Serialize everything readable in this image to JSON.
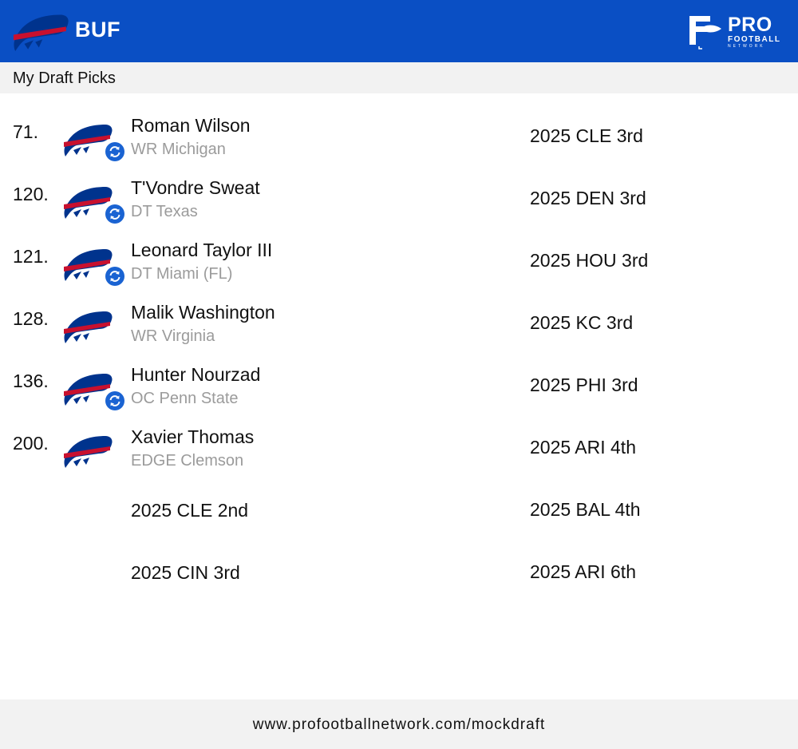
{
  "header": {
    "team_abbr": "BUF",
    "team_logo_icon": "bills-logo-icon",
    "brand_logo_icon": "pro-football-network-logo-icon",
    "brand_text": "PRO",
    "brand_subtext": "FOOTBALL",
    "brand_tiny": "NETWORK",
    "background_color": "#0a4fc4"
  },
  "subheader": {
    "title": "My Draft Picks"
  },
  "picks": [
    {
      "number": "71.",
      "name": "Roman Wilson",
      "meta": "WR Michigan",
      "traded": true
    },
    {
      "number": "120.",
      "name": "T'Vondre Sweat",
      "meta": "DT Texas",
      "traded": true
    },
    {
      "number": "121.",
      "name": "Leonard Taylor III",
      "meta": "DT Miami (FL)",
      "traded": true
    },
    {
      "number": "128.",
      "name": "Malik Washington",
      "meta": "WR Virginia",
      "traded": false
    },
    {
      "number": "136.",
      "name": "Hunter Nourzad",
      "meta": "OC Penn State",
      "traded": true
    },
    {
      "number": "200.",
      "name": "Xavier Thomas",
      "meta": "EDGE Clemson",
      "traded": false
    }
  ],
  "future_picks_left": [
    "2025 CLE 2nd",
    "2025 CIN 3rd"
  ],
  "future_picks_right": [
    "2025 CLE 3rd",
    "2025 DEN 3rd",
    "2025 HOU 3rd",
    "2025 KC 3rd",
    "2025 PHI 3rd",
    "2025 ARI 4th",
    "2025 BAL 4th",
    "2025 ARI 6th"
  ],
  "footer": {
    "url": "www.profootballnetwork.com/mockdraft"
  },
  "colors": {
    "brand_blue": "#0a4fc4",
    "bills_red": "#c8102e",
    "muted_text": "#9b9b9b",
    "trade_badge": "#1a63d2"
  }
}
